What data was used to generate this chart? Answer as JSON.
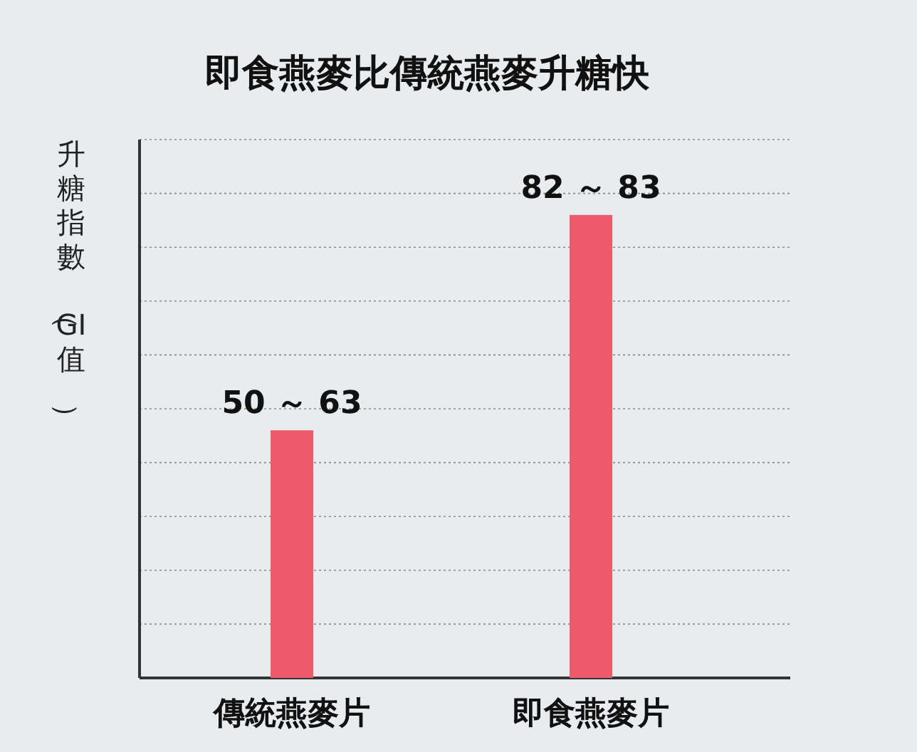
{
  "chart_data": {
    "type": "bar",
    "title": "即食燕麥比傳統燕麥升糖快",
    "ylabel": "升糖指數（GI值）",
    "categories": [
      "傳統燕麥片",
      "即食燕麥片"
    ],
    "values": [
      63,
      83
    ],
    "value_labels": [
      "50 ～ 63",
      "82 ～ 83"
    ],
    "color": "#ef5a6b",
    "ylim": [
      40,
      90
    ],
    "grid": "y",
    "tick_labels": "x"
  }
}
